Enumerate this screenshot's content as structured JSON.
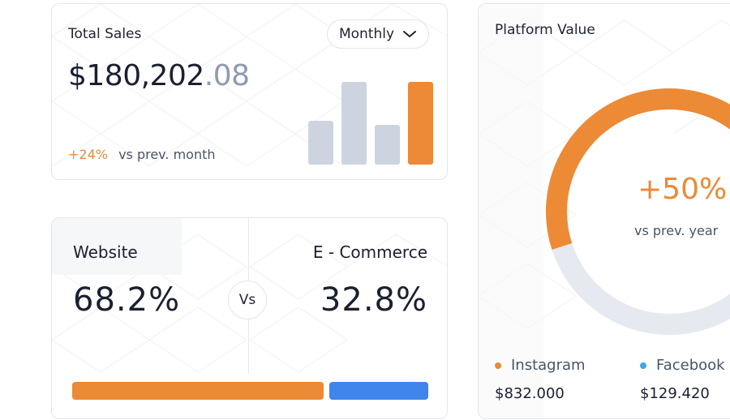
{
  "colors": {
    "accent_orange": "#ec8a35",
    "accent_blue": "#3f85ec",
    "bar_gray": "#cdd4df",
    "track_gray": "#e6eaf0",
    "facebook_blue": "#3da8e6"
  },
  "sales": {
    "title": "Total Sales",
    "amount_main": "$180,202",
    "amount_cents": ".08",
    "period": "Monthly",
    "period_icon": "chevron-down-icon",
    "change_pct": "+24%",
    "change_text": "vs prev. month",
    "bars": [
      {
        "value": 0.53,
        "highlight": false
      },
      {
        "value": 1.0,
        "highlight": false
      },
      {
        "value": 0.48,
        "highlight": false
      },
      {
        "value": 1.0,
        "highlight": true
      }
    ]
  },
  "compare": {
    "left_label": "Website",
    "left_value": "68.2%",
    "vs": "Vs",
    "right_label": "E - Commerce",
    "right_value": "32.8%"
  },
  "platform": {
    "title": "Platform Value",
    "center_pct": "+50%",
    "center_sub": "vs prev. year",
    "progress": 0.5,
    "legend": [
      {
        "name": "Instagram",
        "value": "$832.000",
        "color": "#ec8a35"
      },
      {
        "name": "Facebook",
        "value": "$129.420",
        "color": "#3da8e6"
      }
    ]
  }
}
